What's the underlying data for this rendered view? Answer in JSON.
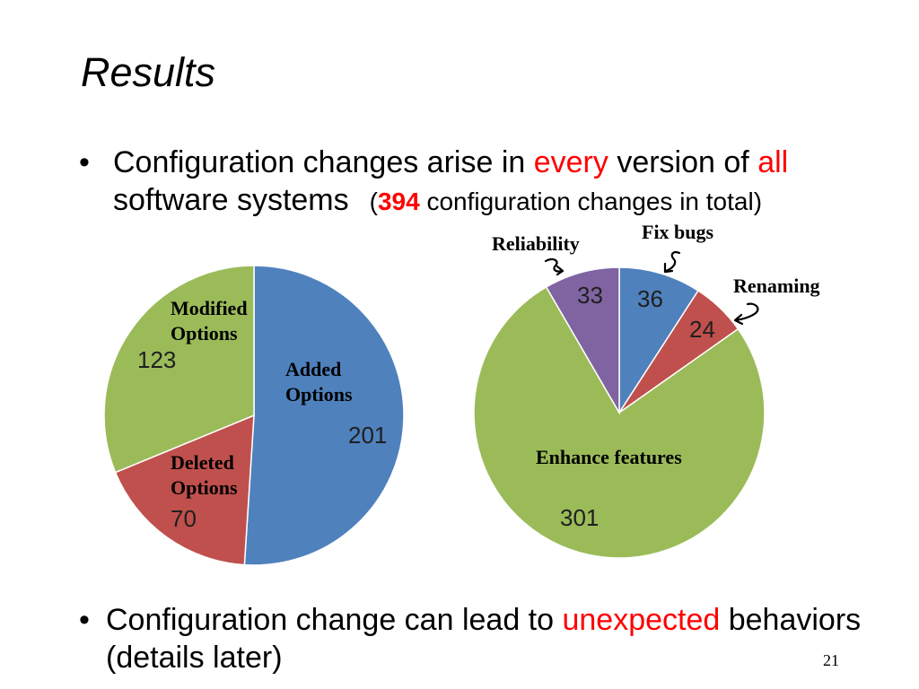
{
  "slide": {
    "title": "Results",
    "page_number": "21"
  },
  "bullets": [
    {
      "marker": "•",
      "line1": [
        "Configuration changes arise in ",
        "every",
        " version of ",
        "all"
      ],
      "line2": [
        "software systems",
        "(",
        "394",
        " configuration changes in total)"
      ]
    },
    {
      "marker": "•",
      "line1": [
        "Configuration change can lead to ",
        "unexpected",
        " behaviors"
      ],
      "line2": "(details later)"
    }
  ],
  "colors": {
    "emphasis": "#FF0000"
  },
  "annotation_icon": "curly-arrow-icon",
  "chart_data": [
    {
      "type": "pie",
      "categories": [
        "Added Options",
        "Deleted Options",
        "Modified Options"
      ],
      "values": [
        201,
        70,
        123
      ],
      "colors": [
        "#4F81BD",
        "#C0504D",
        "#9BBB59"
      ]
    },
    {
      "type": "pie",
      "categories": [
        "Fix bugs",
        "Renaming",
        "Enhance features",
        "Reliability"
      ],
      "values": [
        36,
        24,
        301,
        33
      ],
      "colors": [
        "#4F81BD",
        "#C0504D",
        "#9BBB59",
        "#8064A2"
      ]
    }
  ]
}
